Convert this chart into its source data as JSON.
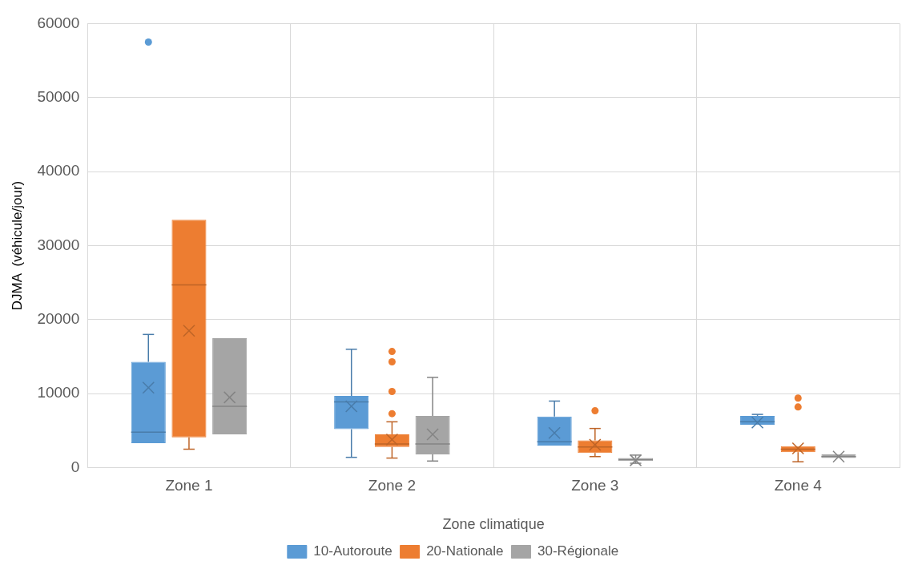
{
  "chart_data": {
    "type": "box",
    "xlabel": "Zone climatique",
    "ylabel": "DJMA  (véhicule/jour)",
    "categories": [
      "Zone 1",
      "Zone 2",
      "Zone 3",
      "Zone 4"
    ],
    "series": [
      {
        "name": "10-Autoroute",
        "color": "#5b9bd5",
        "boxes": [
          {
            "low": 3300,
            "q1": 3300,
            "median": 4800,
            "q3": 14300,
            "high": 18000,
            "mean": 10800,
            "outliers": [
              57500
            ]
          },
          {
            "low": 1400,
            "q1": 5200,
            "median": 8900,
            "q3": 9700,
            "high": 16000,
            "mean": 8300
          },
          {
            "low": 3000,
            "q1": 3000,
            "median": 3500,
            "q3": 6900,
            "high": 9000,
            "mean": 4700
          },
          {
            "low": 5800,
            "q1": 5800,
            "median": 6200,
            "q3": 7000,
            "high": 7200,
            "mean": 6100
          }
        ]
      },
      {
        "name": "20-Nationale",
        "color": "#ed7d31",
        "boxes": [
          {
            "low": 2500,
            "q1": 4100,
            "median": 24700,
            "q3": 33500,
            "high": 33500,
            "mean": 18500
          },
          {
            "low": 1300,
            "q1": 2800,
            "median": 3200,
            "q3": 4500,
            "high": 6200,
            "mean": 3800,
            "outliers": [
              7300,
              10300,
              14300,
              15700
            ]
          },
          {
            "low": 1500,
            "q1": 2000,
            "median": 2800,
            "q3": 3700,
            "high": 5300,
            "mean": 3100,
            "outliers": [
              7700
            ]
          },
          {
            "low": 800,
            "q1": 2100,
            "median": 2500,
            "q3": 2900,
            "high": 2900,
            "mean": 2600,
            "outliers": [
              8200,
              9400
            ]
          }
        ]
      },
      {
        "name": "30-Régionale",
        "color": "#a5a5a5",
        "boxes": [
          {
            "low": 4500,
            "q1": 4500,
            "median": 8300,
            "q3": 17500,
            "high": 17500,
            "mean": 9500
          },
          {
            "low": 900,
            "q1": 1800,
            "median": 3200,
            "q3": 7000,
            "high": 12200,
            "mean": 4500
          },
          {
            "low": 600,
            "q1": 900,
            "median": 1100,
            "q3": 1300,
            "high": 1700,
            "mean": 1000
          },
          {
            "low": 1300,
            "q1": 1300,
            "median": 1500,
            "q3": 1800,
            "high": 1800,
            "mean": 1500
          }
        ]
      }
    ],
    "ylim": [
      0,
      60000
    ],
    "yticks": [
      0,
      10000,
      20000,
      30000,
      40000,
      50000,
      60000
    ],
    "grid": true,
    "legend": "bottom"
  }
}
